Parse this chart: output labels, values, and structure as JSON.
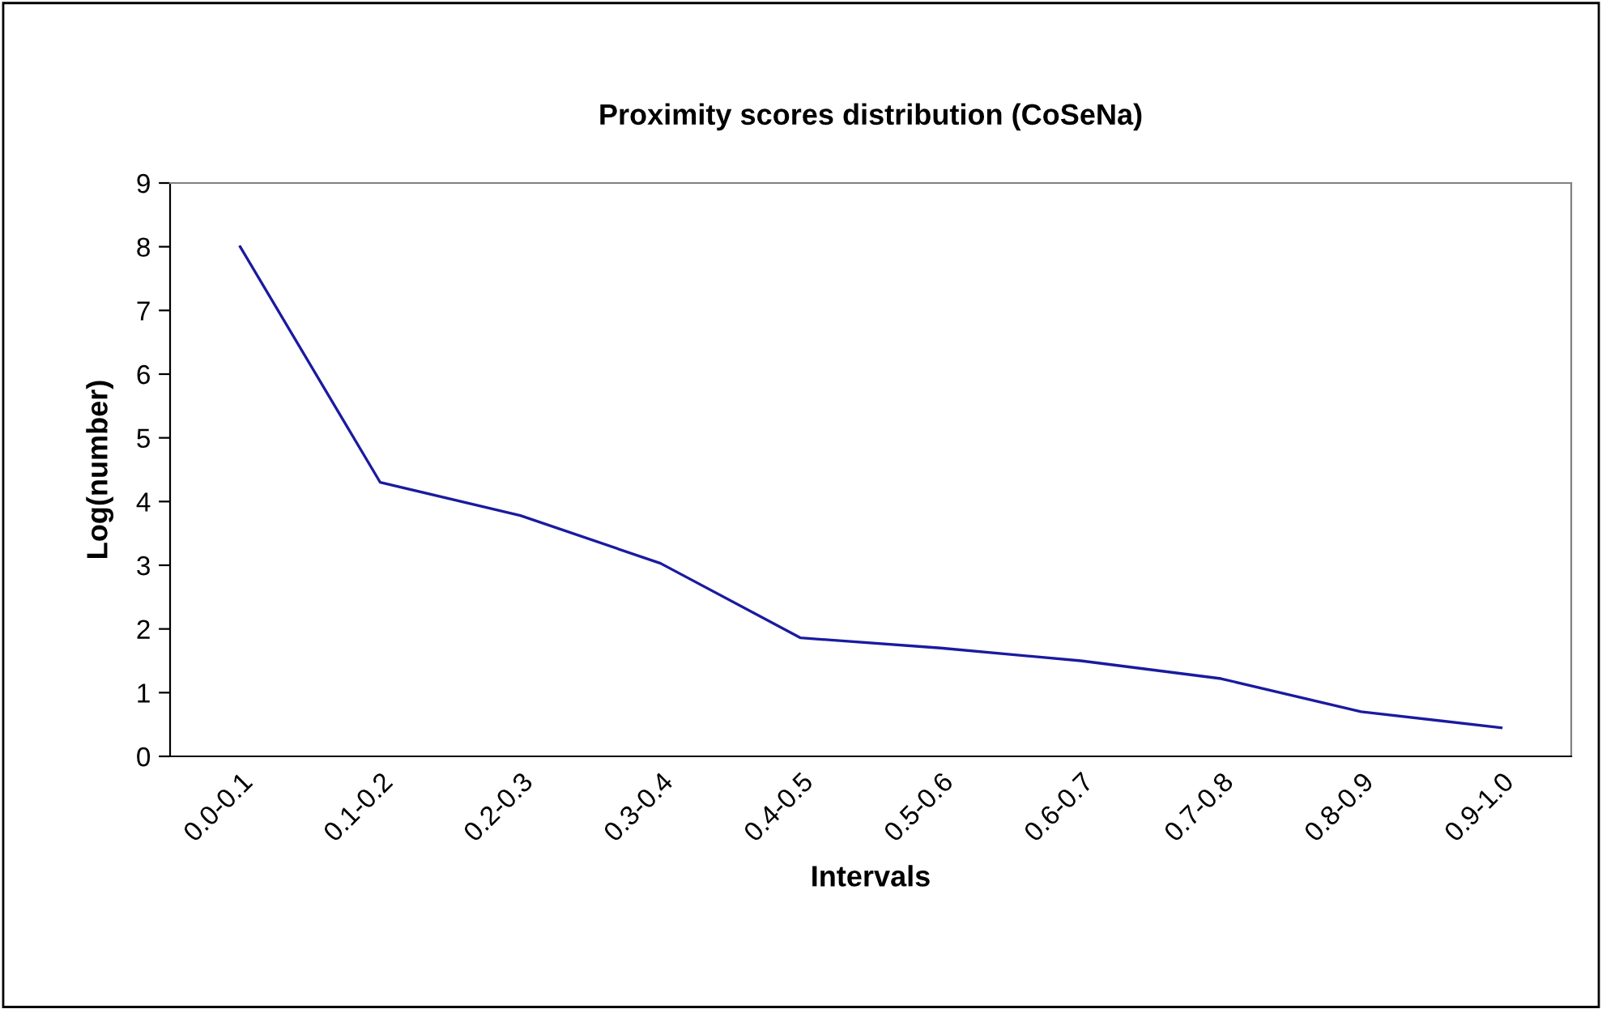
{
  "chart_data": {
    "type": "line",
    "title": "Proximity scores distribution (CoSeNa)",
    "xlabel": "Intervals",
    "ylabel": "Log(number)",
    "categories": [
      "0.0-0.1",
      "0.1-0.2",
      "0.2-0.3",
      "0.3-0.4",
      "0.4-0.5",
      "0.5-0.6",
      "0.6-0.7",
      "0.7-0.8",
      "0.8-0.9",
      "0.9-1.0"
    ],
    "series": [
      {
        "color": "#1a1aa0",
        "values": [
          8.0,
          4.3,
          3.78,
          3.03,
          1.86,
          1.7,
          1.5,
          1.22,
          0.7,
          0.45
        ]
      }
    ],
    "ylim": [
      0,
      9
    ],
    "yticks": [
      0,
      1,
      2,
      3,
      4,
      5,
      6,
      7,
      8,
      9
    ],
    "grid": false,
    "marker": "none",
    "line_style": "solid"
  }
}
